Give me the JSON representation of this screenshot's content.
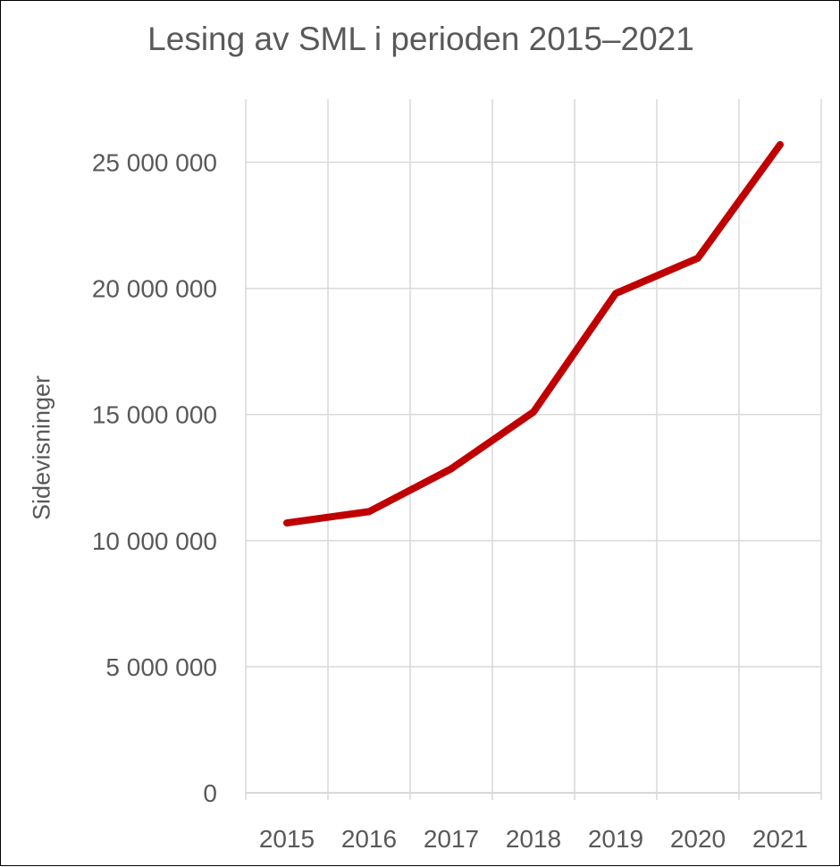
{
  "chart_data": {
    "type": "line",
    "title": "Lesing av SML i perioden 2015–2021",
    "xlabel": "",
    "ylabel": "Sidevisninger",
    "categories": [
      "2015",
      "2016",
      "2017",
      "2018",
      "2019",
      "2020",
      "2021"
    ],
    "series": [
      {
        "values": [
          10700000,
          11150000,
          12850000,
          15100000,
          19800000,
          21200000,
          25700000
        ]
      }
    ],
    "yticks": [
      "0",
      "5 000 000",
      "10 000 000",
      "15 000 000",
      "20 000 000",
      "25 000 000"
    ],
    "ylim": [
      0,
      27500000
    ],
    "grid": true,
    "legend": "none",
    "line_color": "#C00000",
    "gridline_color": "#D9D9D9",
    "text_color": "#595959"
  }
}
